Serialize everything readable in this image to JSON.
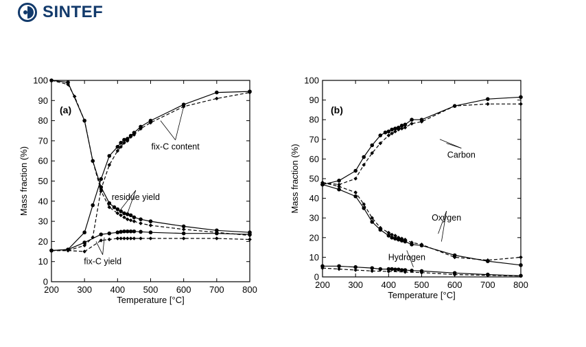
{
  "header": {
    "logo_text": "SINTEF",
    "logo_icon": "sintef-logo-icon"
  },
  "chart_data": [
    {
      "type": "line",
      "panel_label": "(a)",
      "xlabel": "Temperature [°C]",
      "ylabel": "Mass fraction (%)",
      "xlim": [
        200,
        800
      ],
      "ylim": [
        0,
        100
      ],
      "xticks": [
        200,
        300,
        400,
        500,
        600,
        700,
        800
      ],
      "yticks": [
        0,
        10,
        20,
        30,
        40,
        50,
        60,
        70,
        80,
        90,
        100
      ],
      "annotations": [
        {
          "text": "fix-C content",
          "x": 575,
          "y": 67,
          "arrow_to": [
            [
              530,
              80
            ],
            [
              600,
              87
            ]
          ]
        },
        {
          "text": "residue yield",
          "x": 455,
          "y": 42,
          "arrow_to": [
            [
              410,
              36
            ],
            [
              430,
              34
            ]
          ]
        },
        {
          "text": "fix-C yield",
          "x": 355,
          "y": 10,
          "arrow_to": [
            [
              335,
              20
            ],
            [
              360,
              22
            ]
          ]
        }
      ],
      "series": [
        {
          "dash": false,
          "marker": "circle",
          "x": [
            200,
            250,
            300,
            325,
            350,
            375,
            390,
            400,
            410,
            420,
            430,
            440,
            450,
            470,
            500,
            600,
            700,
            800
          ],
          "y": [
            100,
            99,
            80,
            60,
            47,
            39,
            37,
            36,
            35,
            34,
            33.5,
            33,
            32,
            31,
            30,
            27.5,
            25.5,
            24.5
          ]
        },
        {
          "dash": true,
          "marker": "diamond",
          "x": [
            200,
            250,
            270,
            300,
            325,
            350,
            375,
            400,
            410,
            420,
            430,
            440,
            450,
            470,
            500,
            600,
            700,
            800
          ],
          "y": [
            100,
            98,
            92,
            80,
            60,
            45,
            37,
            34,
            33,
            32,
            31,
            30.5,
            30,
            29,
            28,
            26,
            24.5,
            23
          ]
        },
        {
          "dash": false,
          "marker": "circle",
          "x": [
            200,
            250,
            300,
            325,
            350,
            375,
            400,
            410,
            420,
            430,
            440,
            450,
            470,
            500,
            600,
            700,
            800
          ],
          "y": [
            15.5,
            16,
            24.5,
            38,
            51,
            62.5,
            67,
            69,
            70.5,
            71,
            72.5,
            74,
            77,
            80,
            88,
            94,
            94.5
          ]
        },
        {
          "dash": true,
          "marker": "diamond",
          "x": [
            200,
            250,
            300,
            325,
            350,
            375,
            400,
            410,
            420,
            430,
            440,
            450,
            470,
            500,
            600,
            700,
            800
          ],
          "y": [
            15.5,
            15.5,
            18,
            22,
            46,
            58,
            65,
            67,
            69,
            70,
            72,
            73,
            76,
            79,
            87,
            91,
            94
          ]
        },
        {
          "dash": false,
          "marker": "circle",
          "x": [
            200,
            250,
            300,
            350,
            375,
            400,
            410,
            420,
            430,
            440,
            450,
            470,
            500,
            600,
            700,
            800
          ],
          "y": [
            15.5,
            16,
            19.5,
            23.5,
            24,
            24.5,
            24.8,
            25,
            25,
            25,
            25,
            24.8,
            24.5,
            24,
            24,
            23.5
          ]
        },
        {
          "dash": true,
          "marker": "diamond",
          "x": [
            200,
            250,
            300,
            350,
            375,
            400,
            410,
            420,
            430,
            440,
            450,
            470,
            500,
            600,
            700,
            800
          ],
          "y": [
            15.5,
            15.5,
            15,
            20.5,
            21,
            21.5,
            21.5,
            21.5,
            21.5,
            21.5,
            21.5,
            21.5,
            21.5,
            21.5,
            21.5,
            21
          ]
        }
      ]
    },
    {
      "type": "line",
      "panel_label": "(b)",
      "xlabel": "Temperature [°C]",
      "ylabel": "Mass fraction (%)",
      "xlim": [
        200,
        800
      ],
      "ylim": [
        0,
        100
      ],
      "xticks": [
        200,
        300,
        400,
        500,
        600,
        700,
        800
      ],
      "yticks": [
        0,
        10,
        20,
        30,
        40,
        50,
        60,
        70,
        80,
        90,
        100
      ],
      "annotations": [
        {
          "text": "Carbon",
          "x": 620,
          "y": 62,
          "arrow_to": [
            [
              555,
              70
            ],
            [
              575,
              68
            ]
          ]
        },
        {
          "text": "Oxygen",
          "x": 575,
          "y": 30,
          "arrow_to": [
            [
              550,
              22
            ],
            [
              560,
              18
            ]
          ]
        },
        {
          "text": "Hydrogen",
          "x": 455,
          "y": 10,
          "arrow_to": [
            [
              475,
              5
            ]
          ]
        }
      ],
      "series": [
        {
          "dash": false,
          "marker": "circle",
          "x": [
            200,
            250,
            300,
            325,
            350,
            375,
            390,
            400,
            410,
            420,
            430,
            440,
            450,
            470,
            500,
            600,
            700,
            800
          ],
          "y": [
            47,
            49,
            54,
            61,
            67,
            72,
            73.5,
            74,
            75,
            75.5,
            76,
            77,
            77.5,
            80,
            80,
            87,
            90.5,
            91.5
          ]
        },
        {
          "dash": true,
          "marker": "diamond",
          "x": [
            200,
            250,
            300,
            325,
            350,
            375,
            400,
            410,
            420,
            430,
            440,
            450,
            470,
            500,
            600,
            700,
            800
          ],
          "y": [
            48,
            47,
            50,
            57,
            63,
            68,
            72,
            73,
            74,
            75,
            75.5,
            76,
            78,
            79,
            87,
            88,
            88
          ]
        },
        {
          "dash": false,
          "marker": "circle",
          "x": [
            200,
            250,
            300,
            325,
            350,
            375,
            400,
            410,
            420,
            430,
            440,
            450,
            470,
            500,
            600,
            700,
            800
          ],
          "y": [
            47,
            44.5,
            41,
            35,
            28,
            24,
            21,
            20,
            19.5,
            19,
            18.5,
            18,
            16.5,
            16,
            11,
            8,
            6
          ]
        },
        {
          "dash": true,
          "marker": "diamond",
          "x": [
            200,
            250,
            300,
            325,
            350,
            375,
            400,
            410,
            420,
            430,
            440,
            450,
            470,
            500,
            600,
            700,
            800
          ],
          "y": [
            48,
            46,
            43,
            37,
            30,
            25,
            22.5,
            21.5,
            21,
            20,
            19.5,
            19,
            17.5,
            16.5,
            10,
            8.5,
            10
          ]
        },
        {
          "dash": false,
          "marker": "circle",
          "x": [
            200,
            250,
            300,
            350,
            375,
            400,
            410,
            420,
            430,
            440,
            450,
            470,
            500,
            600,
            700,
            800
          ],
          "y": [
            5.5,
            5.5,
            5,
            4.5,
            4,
            4,
            4,
            3.8,
            3.8,
            3.5,
            3.5,
            3.2,
            3,
            2,
            1.2,
            0.6
          ]
        },
        {
          "dash": true,
          "marker": "diamond",
          "x": [
            200,
            250,
            300,
            350,
            400,
            450,
            500,
            600,
            700,
            800
          ],
          "y": [
            4.5,
            4,
            3.5,
            3,
            2.8,
            2.5,
            2.2,
            1.2,
            0.8,
            0.5
          ]
        }
      ]
    }
  ]
}
